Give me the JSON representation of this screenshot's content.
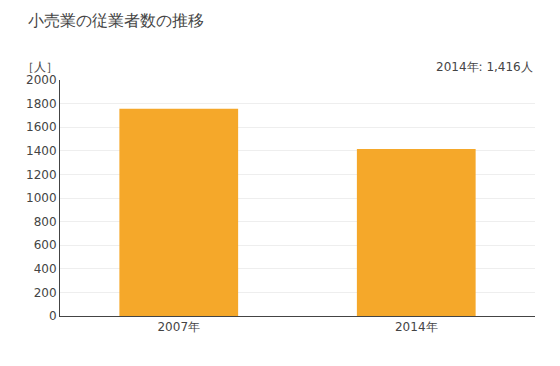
{
  "chart_data": {
    "type": "bar",
    "title": "小売業の従業者数の推移",
    "ylabel": "［人］",
    "annotation": "2014年: 1,416人",
    "categories": [
      "2007年",
      "2014年"
    ],
    "values": [
      1757,
      1416
    ],
    "color": "#F5A82A",
    "ylim": [
      0,
      2000
    ],
    "yticks": [
      0,
      200,
      400,
      600,
      800,
      1000,
      1200,
      1400,
      1600,
      1800,
      2000
    ],
    "grid": true
  }
}
